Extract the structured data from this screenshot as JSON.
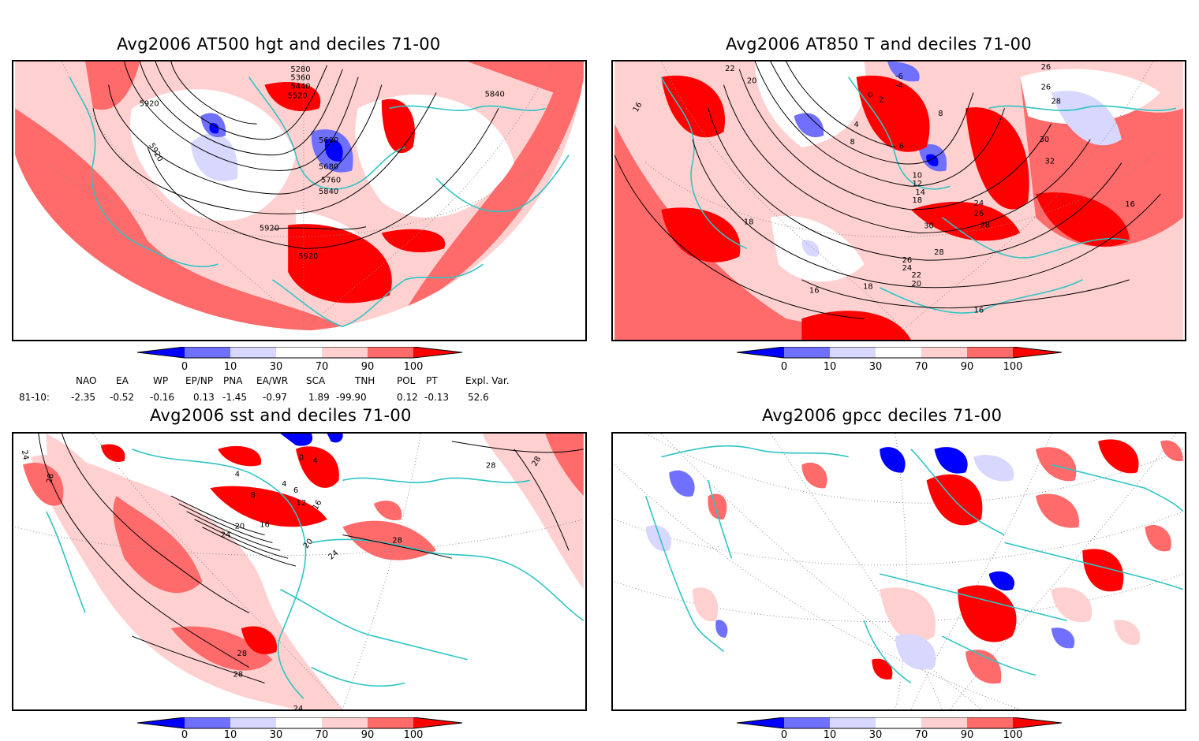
{
  "colors": {
    "coast": "#2ec4c4",
    "contour": "#000000",
    "d0_10": "#0000ff",
    "d10_30": "#7070ff",
    "d30_70a": "#d8d8ff",
    "d70_90": "#ffd0d0",
    "d90_100": "#ff6a6a",
    "d100": "#ff0000"
  },
  "panels": [
    {
      "title": "Avg2006 AT500 hgt and deciles 71-00",
      "contour_labels": [
        "5280",
        "5360",
        "5440",
        "5520",
        "5920",
        "5920",
        "5600",
        "5680",
        "5760",
        "5840",
        "5840",
        "5920",
        "5920"
      ]
    },
    {
      "title": "Avg2006 AT850 T and deciles 71-00",
      "contour_labels": [
        "22",
        "20",
        "16",
        "-6",
        "-4",
        "0",
        "2",
        "4",
        "8",
        "8",
        "6",
        "10",
        "12",
        "14",
        "18",
        "26",
        "26",
        "28",
        "30",
        "32",
        "16",
        "18",
        "24",
        "26",
        "28",
        "30",
        "28",
        "26",
        "24",
        "22",
        "20",
        "18",
        "16",
        "16"
      ]
    },
    {
      "title": "Avg2006 sst and deciles 71-00",
      "contour_labels": [
        "24",
        "28",
        "0",
        "4",
        "4",
        "8",
        "4",
        "6",
        "12",
        "16",
        "16",
        "20",
        "20",
        "24",
        "24",
        "28",
        "28",
        "28",
        "28",
        "28",
        "24"
      ]
    },
    {
      "title": "Avg2006 gpcc deciles 71-00",
      "contour_labels": []
    }
  ],
  "colorbar_ticks": [
    "0",
    "10",
    "30",
    "70",
    "90",
    "100"
  ],
  "indices": {
    "headers": [
      "NAO",
      "EA",
      "WP",
      "EP/NP",
      "PNA",
      "EA/WR",
      "SCA",
      "TNH",
      "POL",
      "PT",
      "Expl. Var."
    ],
    "row_label": "81-10:",
    "values": [
      "-2.35",
      "-0.52",
      "-0.16",
      "0.13",
      "-1.45",
      "-0.97",
      "1.89",
      "-99.90",
      "0.12",
      "-0.13",
      "52.6"
    ]
  }
}
